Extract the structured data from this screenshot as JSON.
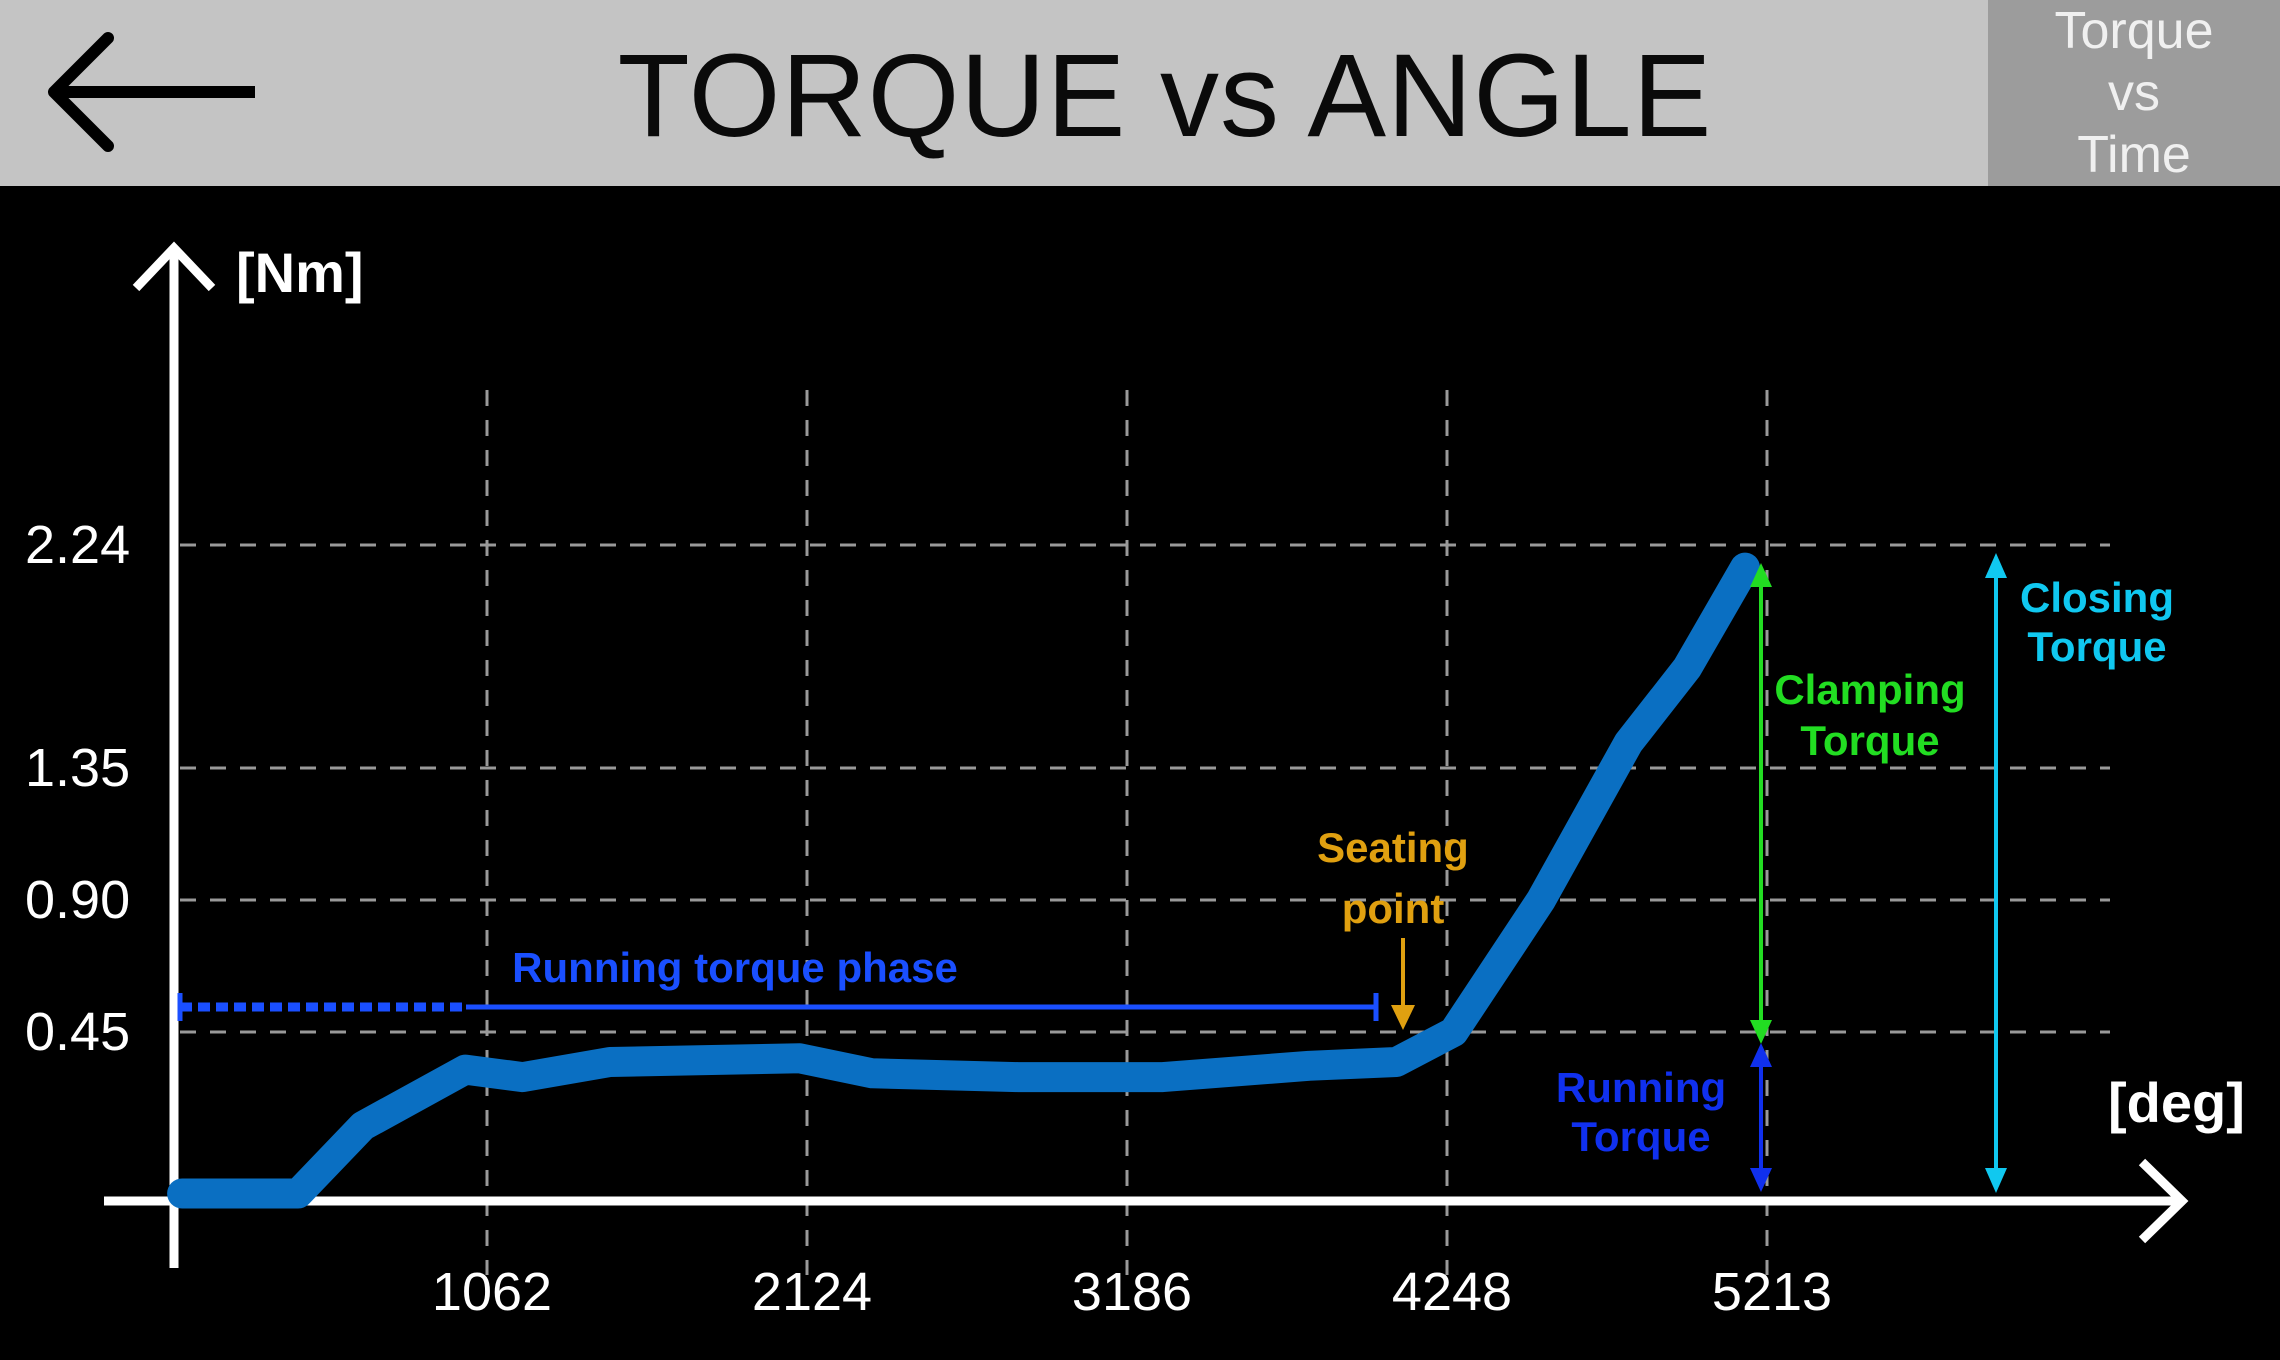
{
  "header": {
    "title": "TORQUE vs ANGLE",
    "back_icon": "arrow-left-icon",
    "alt_view_button": [
      "Torque",
      "vs",
      "Time"
    ]
  },
  "chart_data": {
    "type": "line",
    "title": "TORQUE vs ANGLE",
    "xlabel": "[deg]",
    "ylabel": "[Nm]",
    "x_ticks": [
      1062,
      2124,
      3186,
      4248,
      5213
    ],
    "y_ticks": [
      0.45,
      0.9,
      1.35,
      2.24
    ],
    "x_tick_labels": [
      "1062",
      "2124",
      "3186",
      "4248",
      "5213"
    ],
    "y_tick_labels": [
      "0.45",
      "0.90",
      "1.35",
      "2.24"
    ],
    "grid": true,
    "series": [
      {
        "color": "#0a6fc2",
        "x": [
          50,
          435,
          650,
          990,
          1180,
          1470,
          2100,
          2340,
          2825,
          3305,
          3790,
          4080,
          4270,
          4560,
          4850,
          5045,
          5237
        ],
        "y": [
          0.02,
          0.02,
          0.2,
          0.35,
          0.33,
          0.37,
          0.38,
          0.34,
          0.33,
          0.33,
          0.36,
          0.37,
          0.45,
          0.9,
          1.45,
          1.75,
          2.15
        ]
      }
    ],
    "annotations": {
      "running_phase": {
        "text": "Running torque phase",
        "color": "#1a4fff"
      },
      "seating_point": {
        "text": [
          "Seating",
          "point"
        ],
        "color": "#e0a010"
      },
      "clamping_torque": {
        "text": [
          "Clamping",
          "Torque"
        ],
        "color": "#22dd22"
      },
      "running_torque": {
        "text": [
          "Running",
          "Torque"
        ],
        "color": "#1030ee"
      },
      "closing_torque": {
        "text": [
          "Closing",
          "Torque"
        ],
        "color": "#10c8f0"
      }
    }
  }
}
